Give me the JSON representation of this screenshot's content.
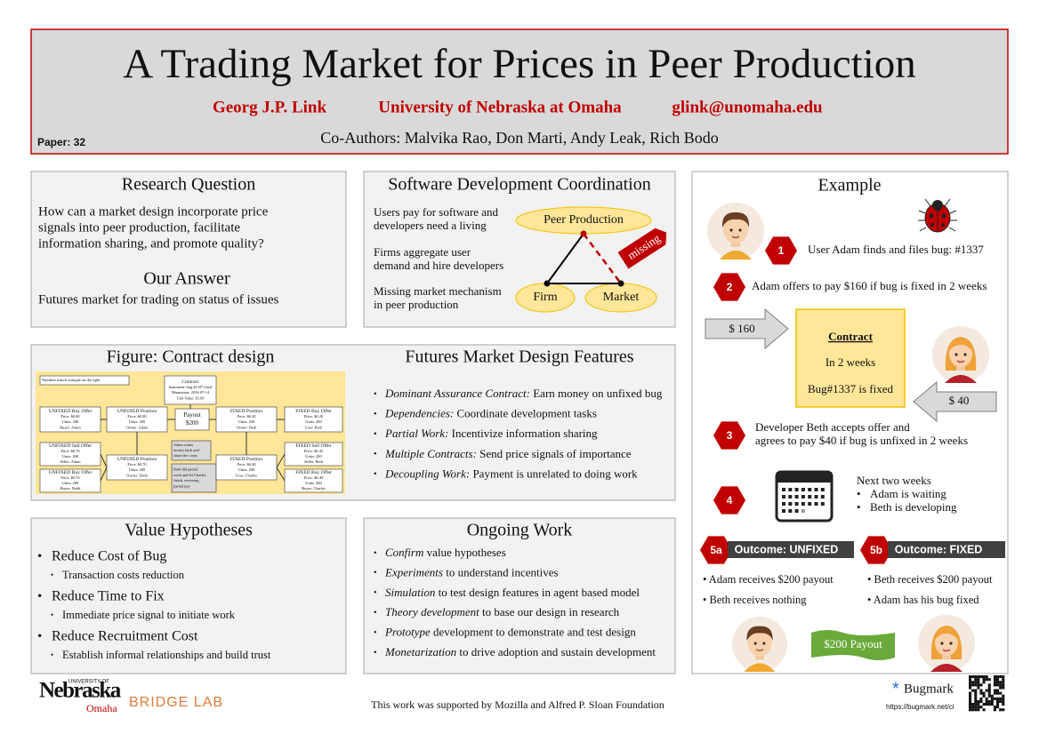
{
  "header": {
    "title": "A Trading Market for Prices in Peer Production",
    "author": "Georg J.P. Link",
    "affiliation": "University of Nebraska at Omaha",
    "email": "glink@unomaha.edu",
    "coauthors": "Co-Authors: Malvika Rao, Don Marti, Andy Leak, Rich Bodo",
    "paper": "Paper: 32"
  },
  "research": {
    "title": "Research Question",
    "question": [
      "How can a market design incorporate price",
      "signals into peer production, facilitate",
      "information sharing, and promote quality?"
    ],
    "answer_title": "Our Answer",
    "answer": "Futures market for trading on status of issues"
  },
  "coordination": {
    "title": "Software Development Coordination",
    "points": [
      [
        "Users pay for software and",
        "developers need a living"
      ],
      [
        "Firms aggregate user",
        "demand and hire developers"
      ],
      [
        "Missing market mechanism",
        "in peer production"
      ]
    ],
    "nodes": [
      "Peer Production",
      "Firm",
      "Market"
    ],
    "missing": "missing"
  },
  "figure": {
    "title": "Figure: Contract design",
    "boxes": [
      {
        "lines": [
          "Numbers match example on the right"
        ]
      },
      {
        "lines": [
          "Contract",
          "Statement: bug #1337 fixed",
          "Maturation: 2016-07-14",
          "Unit Value: $1.00"
        ]
      },
      {
        "lines": [
          "UNFIXED Buy Offer",
          "Price: $0.80",
          "Units: 200",
          "Buyer: Adam"
        ]
      },
      {
        "lines": [
          "UNFIXED Position",
          "Price: $0.80",
          "Units: 200",
          "Owner: Adam"
        ]
      },
      {
        "lines": [
          "Payout",
          "$200"
        ]
      },
      {
        "lines": [
          "FIXED Position",
          "Price: $0.20",
          "Units: 200",
          "Owner: Beth"
        ]
      },
      {
        "lines": [
          "FIXED Buy Offer",
          "Price: $0.20",
          "Units: 200",
          "User: Beth"
        ]
      },
      {
        "lines": [
          "UNFIXED Sell Offer",
          "Price: $0.70",
          "Units: 200",
          "Seller: Adam"
        ]
      },
      {
        "lines": [
          "UNFIXED Position",
          "Price: $0.70",
          "Units: 200",
          "Owner: Debb"
        ]
      },
      {
        "lines": [
          "Adam wants",
          "money back and",
          "share dev costs"
        ]
      },
      {
        "lines": [
          "Both did partial",
          "work and let Charles",
          "finish, receiving",
          "partial pay"
        ]
      },
      {
        "lines": [
          "FIXED Position",
          "Price: $0.40",
          "Units: 200",
          "User: Charles"
        ]
      },
      {
        "lines": [
          "FIXED Sell Offer",
          "Price: $0.45",
          "Units: 200",
          "Seller: Beth"
        ]
      },
      {
        "lines": [
          "UNFIXED Buy Offer",
          "Price: $0.70",
          "Units: 200",
          "Buyer: Debb"
        ]
      },
      {
        "lines": [
          "FIXED Buy Offer",
          "Price: $0.40",
          "Units: 200",
          "Buyer: Charles"
        ]
      }
    ]
  },
  "features": {
    "title": "Futures Market Design Features",
    "items": [
      {
        "term": "Dominant Assurance Contract:",
        "text": " Earn money on unfixed bug"
      },
      {
        "term": "Dependencies:",
        "text": " Coordinate development tasks"
      },
      {
        "term": "Partial Work:",
        "text": " Incentivize information sharing"
      },
      {
        "term": "Multiple Contracts:",
        "text": " Send price signals of importance"
      },
      {
        "term": "Decoupling Work:",
        "text": " Payment is unrelated to doing work"
      }
    ]
  },
  "hypotheses": {
    "title": "Value Hypotheses",
    "items": [
      {
        "heading": "Reduce Cost of Bug",
        "detail": "Transaction costs reduction"
      },
      {
        "heading": "Reduce Time to Fix",
        "detail": "Immediate price signal to initiate work"
      },
      {
        "heading": "Reduce Recruitment Cost",
        "detail": "Establish informal relationships and build trust"
      }
    ]
  },
  "ongoing": {
    "title": "Ongoing Work",
    "items": [
      {
        "term": "Confirm",
        "text": " value hypotheses"
      },
      {
        "term": "Experiments",
        "text": " to understand incentives"
      },
      {
        "term": "Simulation",
        "text": " to test design features in agent based model"
      },
      {
        "term": "Theory development",
        "text": " to base our design in research"
      },
      {
        "term": "Prototype",
        "text": " development to demonstrate and test design"
      },
      {
        "term": "Monetarization",
        "text": " to drive adoption and sustain development"
      }
    ]
  },
  "example": {
    "title": "Example",
    "steps": [
      "1",
      "2",
      "3",
      "4",
      "5a",
      "5b"
    ],
    "step1": "User Adam finds and files bug: #1337",
    "step2": "Adam offers to pay $160 if bug is fixed in 2 weeks",
    "offer": "$ 160",
    "contract": [
      "Contract",
      "In 2 weeks",
      "Bug#1337 is fixed"
    ],
    "counter": "$ 40",
    "step3": [
      "Developer Beth accepts offer and",
      "agrees to pay $40 if bug is unfixed in 2 weeks"
    ],
    "step4": [
      "Next two weeks",
      "Adam is waiting",
      "Beth is developing"
    ],
    "outcome_unfixed": "Outcome: UNFIXED",
    "outcome_fixed": "Outcome: FIXED",
    "unfixed": [
      "• Adam receives $200 payout",
      "• Beth receives nothing"
    ],
    "fixed": [
      "• Beth receives $200 payout",
      "• Adam has his bug fixed"
    ],
    "payout": "$200 Payout"
  },
  "footer": {
    "university": "UNIVERSITY OF",
    "nebraska": "Nebraska",
    "omaha": "Omaha",
    "lab": "BRIDGE LAB",
    "support": "This work was supported by Mozilla and Alfred P. Sloan Foundation",
    "bugmark": "Bugmark",
    "url": "https://bugmark.net/ci"
  }
}
